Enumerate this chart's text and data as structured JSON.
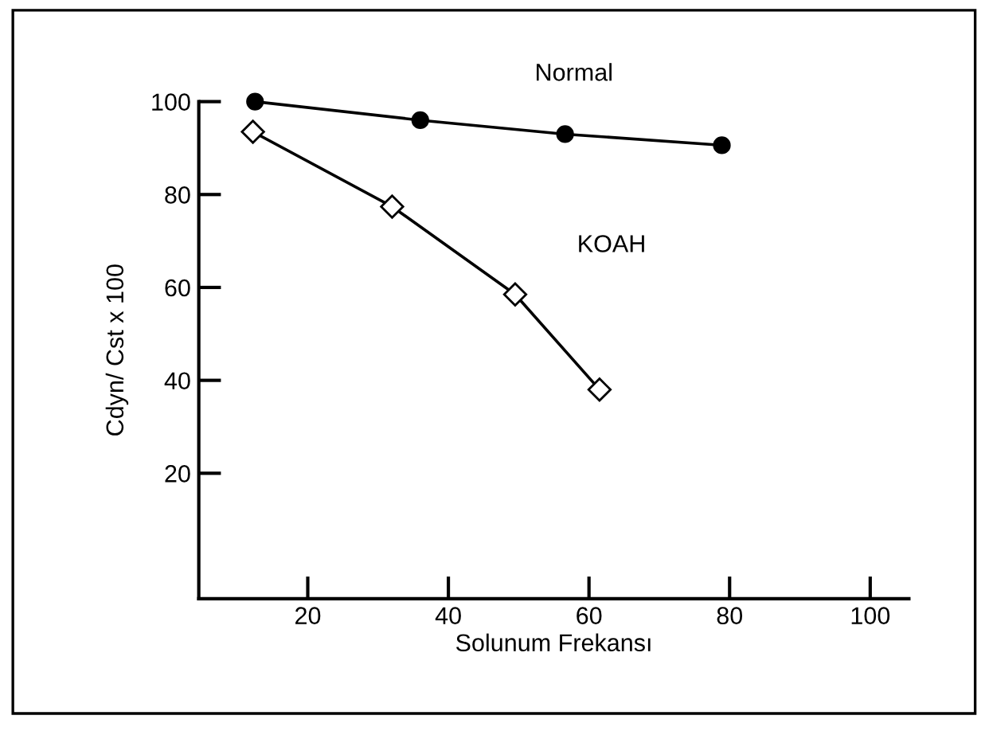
{
  "chart_data": {
    "type": "line",
    "xlabel": "Solunum Frekansı",
    "ylabel": "Cdyn/ Cst x 100",
    "series": [
      {
        "name": "Normal",
        "color": "#000000",
        "marker": "circle",
        "x": [
          12.5,
          36,
          56.6,
          78.9
        ],
        "values": [
          100,
          96,
          93,
          90.6
        ]
      },
      {
        "name": "KOAH",
        "color": "#000000",
        "marker": "diamond",
        "x": [
          12.2,
          32,
          49.5,
          61.5
        ],
        "values": [
          93.5,
          77.4,
          58.5,
          38
        ]
      }
    ],
    "xlim": [
      4.5,
      105.5
    ],
    "ylim": [
      -7,
      100
    ],
    "xticks": [
      20,
      40,
      60,
      80,
      100
    ],
    "yticks": [
      20,
      40,
      60,
      80,
      100
    ],
    "grid": false,
    "legend": false
  }
}
